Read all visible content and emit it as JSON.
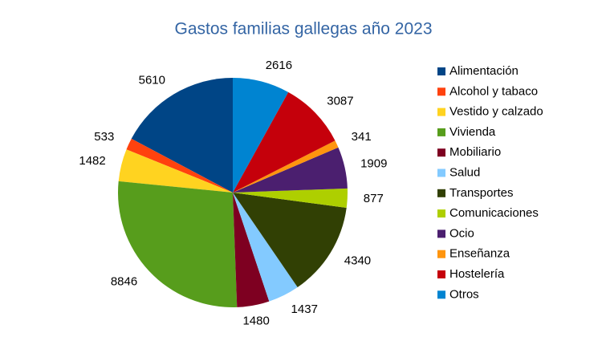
{
  "chart_data": {
    "type": "pie",
    "title": "Gastos familias gallegas año 2023",
    "categories": [
      "Alimentación",
      "Alcohol y tabaco",
      "Vestido y calzado",
      "Vivienda",
      "Mobiliario",
      "Salud",
      "Transportes",
      "Comunicaciones",
      "Ocio",
      "Enseñanza",
      "Hostelería",
      "Otros"
    ],
    "values": [
      5610,
      533,
      1482,
      8846,
      1480,
      1437,
      4340,
      877,
      1909,
      341,
      3087,
      2616
    ],
    "colors": [
      "#004586",
      "#ff420e",
      "#ffd320",
      "#579d1c",
      "#7e0021",
      "#83caff",
      "#314004",
      "#aecf00",
      "#4b1f6f",
      "#ff950e",
      "#c5000b",
      "#0084d1"
    ]
  }
}
